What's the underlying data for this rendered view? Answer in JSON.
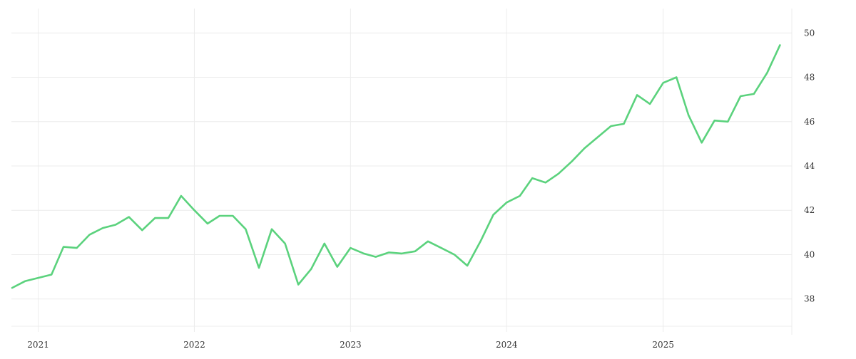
{
  "colors": {
    "line": "#5bd27d",
    "grid": "#ececec",
    "axis_text": "#333333",
    "background": "#ffffff"
  },
  "chart_data": {
    "type": "line",
    "title": "",
    "xlabel": "",
    "ylabel": "",
    "x_axis": "date",
    "xlim": [
      "2020-11-01",
      "2025-11-01"
    ],
    "ylim": [
      36.6,
      51.1
    ],
    "y_axis_side": "right",
    "grid": true,
    "legend": "none",
    "x_ticks": [
      {
        "date": "2021-01-01",
        "label": "2021"
      },
      {
        "date": "2022-01-01",
        "label": "2022"
      },
      {
        "date": "2023-01-01",
        "label": "2023"
      },
      {
        "date": "2024-01-01",
        "label": "2024"
      },
      {
        "date": "2025-01-01",
        "label": "2025"
      }
    ],
    "y_ticks": [
      {
        "value": 38,
        "label": "38"
      },
      {
        "value": 40,
        "label": "40"
      },
      {
        "value": 42,
        "label": "42"
      },
      {
        "value": 44,
        "label": "44"
      },
      {
        "value": 46,
        "label": "46"
      },
      {
        "value": 48,
        "label": "48"
      },
      {
        "value": 50,
        "label": "50"
      }
    ],
    "series": [
      {
        "x": [
          "2020-11-01",
          "2020-12-01",
          "2021-01-01",
          "2021-02-01",
          "2021-03-01",
          "2021-04-01",
          "2021-05-01",
          "2021-06-01",
          "2021-07-01",
          "2021-08-01",
          "2021-09-01",
          "2021-10-01",
          "2021-11-01",
          "2021-12-01",
          "2022-01-01",
          "2022-02-01",
          "2022-03-01",
          "2022-04-01",
          "2022-05-01",
          "2022-06-01",
          "2022-07-01",
          "2022-08-01",
          "2022-09-01",
          "2022-10-01",
          "2022-11-01",
          "2022-12-01",
          "2023-01-01",
          "2023-02-01",
          "2023-03-01",
          "2023-04-01",
          "2023-05-01",
          "2023-06-01",
          "2023-07-01",
          "2023-08-01",
          "2023-09-01",
          "2023-10-01",
          "2023-11-01",
          "2023-12-01",
          "2024-01-01",
          "2024-02-01",
          "2024-03-01",
          "2024-04-01",
          "2024-05-01",
          "2024-06-01",
          "2024-07-01",
          "2024-08-01",
          "2024-09-01",
          "2024-10-01",
          "2024-11-01",
          "2024-12-01",
          "2025-01-01",
          "2025-02-01",
          "2025-03-01",
          "2025-04-01",
          "2025-05-01",
          "2025-06-01",
          "2025-07-01",
          "2025-08-01",
          "2025-09-01",
          "2025-10-01"
        ],
        "values": [
          38.5,
          38.8,
          38.95,
          39.1,
          40.35,
          40.3,
          40.9,
          41.2,
          41.35,
          41.7,
          41.1,
          41.65,
          41.65,
          42.65,
          42.0,
          41.4,
          41.75,
          41.75,
          41.15,
          39.4,
          41.15,
          40.5,
          38.65,
          39.35,
          40.5,
          39.45,
          40.3,
          40.05,
          39.9,
          40.1,
          40.05,
          40.15,
          40.6,
          40.3,
          40.0,
          39.5,
          40.6,
          41.8,
          42.35,
          42.65,
          43.45,
          43.25,
          43.65,
          44.2,
          44.8,
          45.3,
          45.8,
          45.9,
          47.2,
          46.8,
          47.75,
          48.0,
          46.3,
          45.05,
          46.05,
          46.0,
          47.15,
          47.25,
          48.2,
          49.45
        ]
      }
    ]
  }
}
